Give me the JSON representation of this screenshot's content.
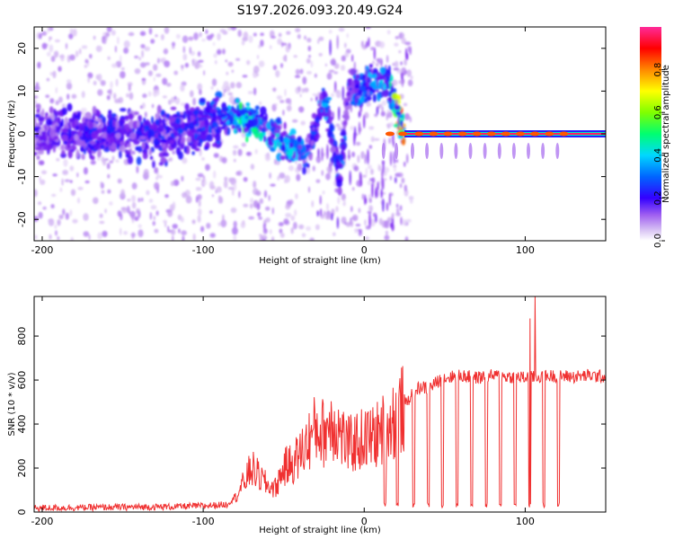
{
  "title": "S197.2026.093.20.49.G24",
  "chart_data": [
    {
      "type": "heatmap",
      "title": "S197.2026.093.20.49.G24",
      "xlabel": "Height of straight line (km)",
      "ylabel": "Frequency (Hz)",
      "xlim": [
        -205,
        150
      ],
      "ylim": [
        -25,
        25
      ],
      "xticks": [
        -200,
        -100,
        0,
        100
      ],
      "yticks": [
        -20,
        -10,
        0,
        10,
        20
      ],
      "colorbar": {
        "label": "Normalized spectral amplitude",
        "range": [
          0,
          1
        ],
        "ticks": [
          "0.0",
          "0.2",
          "0.4",
          "0.6",
          "0.8"
        ],
        "tick_values": [
          0,
          0.2,
          0.4,
          0.6,
          0.8
        ],
        "colormap": [
          "#ffffff",
          "#c9a6f0",
          "#7a1ff0",
          "#3300ff",
          "#0066ff",
          "#00d8ff",
          "#00ff70",
          "#80ff00",
          "#ffff00",
          "#ff8800",
          "#ff0000",
          "#ff2a99"
        ]
      },
      "ridge": [
        {
          "x": -200,
          "f": 0,
          "a": 0.25
        },
        {
          "x": -160,
          "f": 0,
          "a": 0.3
        },
        {
          "x": -120,
          "f": 0,
          "a": 0.3
        },
        {
          "x": -90,
          "f": 3,
          "a": 0.35
        },
        {
          "x": -75,
          "f": 4,
          "a": 0.55
        },
        {
          "x": -60,
          "f": 1,
          "a": 0.45
        },
        {
          "x": -45,
          "f": -3,
          "a": 0.45
        },
        {
          "x": -35,
          "f": -5,
          "a": 0.35
        },
        {
          "x": -25,
          "f": 9,
          "a": 0.4
        },
        {
          "x": -15,
          "f": -11,
          "a": 0.35
        },
        {
          "x": -10,
          "f": 10,
          "a": 0.35
        },
        {
          "x": 0,
          "f": 11,
          "a": 0.4
        },
        {
          "x": 15,
          "f": 12,
          "a": 0.45
        },
        {
          "x": 25,
          "f": 0,
          "a": 0.9
        },
        {
          "x": 40,
          "f": -9,
          "a": 0.3
        },
        {
          "x": 150,
          "f": 0,
          "a": 0.95
        }
      ]
    },
    {
      "type": "line",
      "xlabel": "Height of straight line (km)",
      "ylabel": "SNR (10 * v/v)",
      "xlim": [
        -205,
        150
      ],
      "ylim": [
        0,
        980
      ],
      "xticks": [
        -200,
        -100,
        0,
        100
      ],
      "yticks": [
        0,
        200,
        400,
        600,
        800
      ],
      "color": "#f03030",
      "series": [
        {
          "name": "SNR",
          "x": [
            -205,
            -180,
            -150,
            -120,
            -100,
            -85,
            -78,
            -70,
            -65,
            -60,
            -55,
            -50,
            -45,
            -40,
            -35,
            -30,
            -25,
            -20,
            -15,
            -10,
            -5,
            0,
            5,
            10,
            15,
            20,
            25,
            30,
            35,
            40,
            45,
            50,
            60,
            70,
            80,
            90,
            100,
            110,
            120,
            130,
            140,
            150
          ],
          "values": [
            18,
            20,
            22,
            24,
            28,
            35,
            90,
            200,
            160,
            120,
            110,
            200,
            220,
            260,
            320,
            380,
            360,
            420,
            360,
            300,
            320,
            330,
            340,
            360,
            400,
            430,
            480,
            540,
            570,
            560,
            590,
            610,
            620,
            610,
            620,
            615,
            610,
            615,
            620,
            615,
            620,
            615
          ]
        }
      ],
      "dropouts": [
        12,
        20,
        30,
        39,
        48,
        57,
        66,
        75,
        84,
        93,
        102,
        111,
        120
      ],
      "spike": {
        "x": 106,
        "value": 980
      }
    }
  ]
}
